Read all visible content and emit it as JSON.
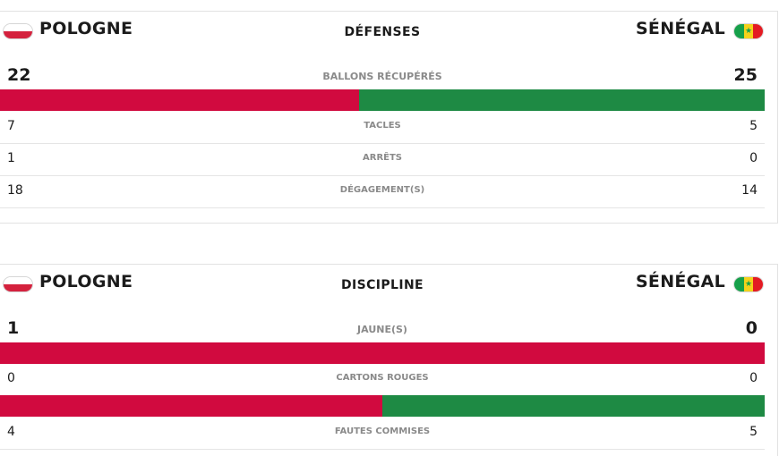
{
  "colors": {
    "home": "#d10a3f",
    "away": "#1e8a44"
  },
  "panels": [
    {
      "home_team": "POLOGNE",
      "away_team": "SÉNÉGAL",
      "home_flag_icon": "poland-flag-icon",
      "away_flag_icon": "senegal-flag-icon",
      "title": "DÉFENSES",
      "headline": {
        "label": "BALLONS RÉCUPÉRÉS",
        "home": "22",
        "away": "25",
        "home_share": 0.47
      },
      "rows": [
        {
          "label": "TACLES",
          "home": "7",
          "away": "5"
        },
        {
          "label": "ARRÊTS",
          "home": "1",
          "away": "0"
        },
        {
          "label": "DÉGAGEMENT(S)",
          "home": "18",
          "away": "14"
        }
      ]
    },
    {
      "home_team": "POLOGNE",
      "away_team": "SÉNÉGAL",
      "home_flag_icon": "poland-flag-icon",
      "away_flag_icon": "senegal-flag-icon",
      "title": "DISCIPLINE",
      "headline": {
        "label": "JAUNE(S)",
        "home": "1",
        "away": "0",
        "home_share": 1.0
      },
      "rows": [
        {
          "label": "CARTONS ROUGES",
          "home": "0",
          "away": "0",
          "home_share": 0.5
        },
        {
          "label": "FAUTES COMMISES",
          "home": "4",
          "away": "5"
        }
      ]
    }
  ]
}
